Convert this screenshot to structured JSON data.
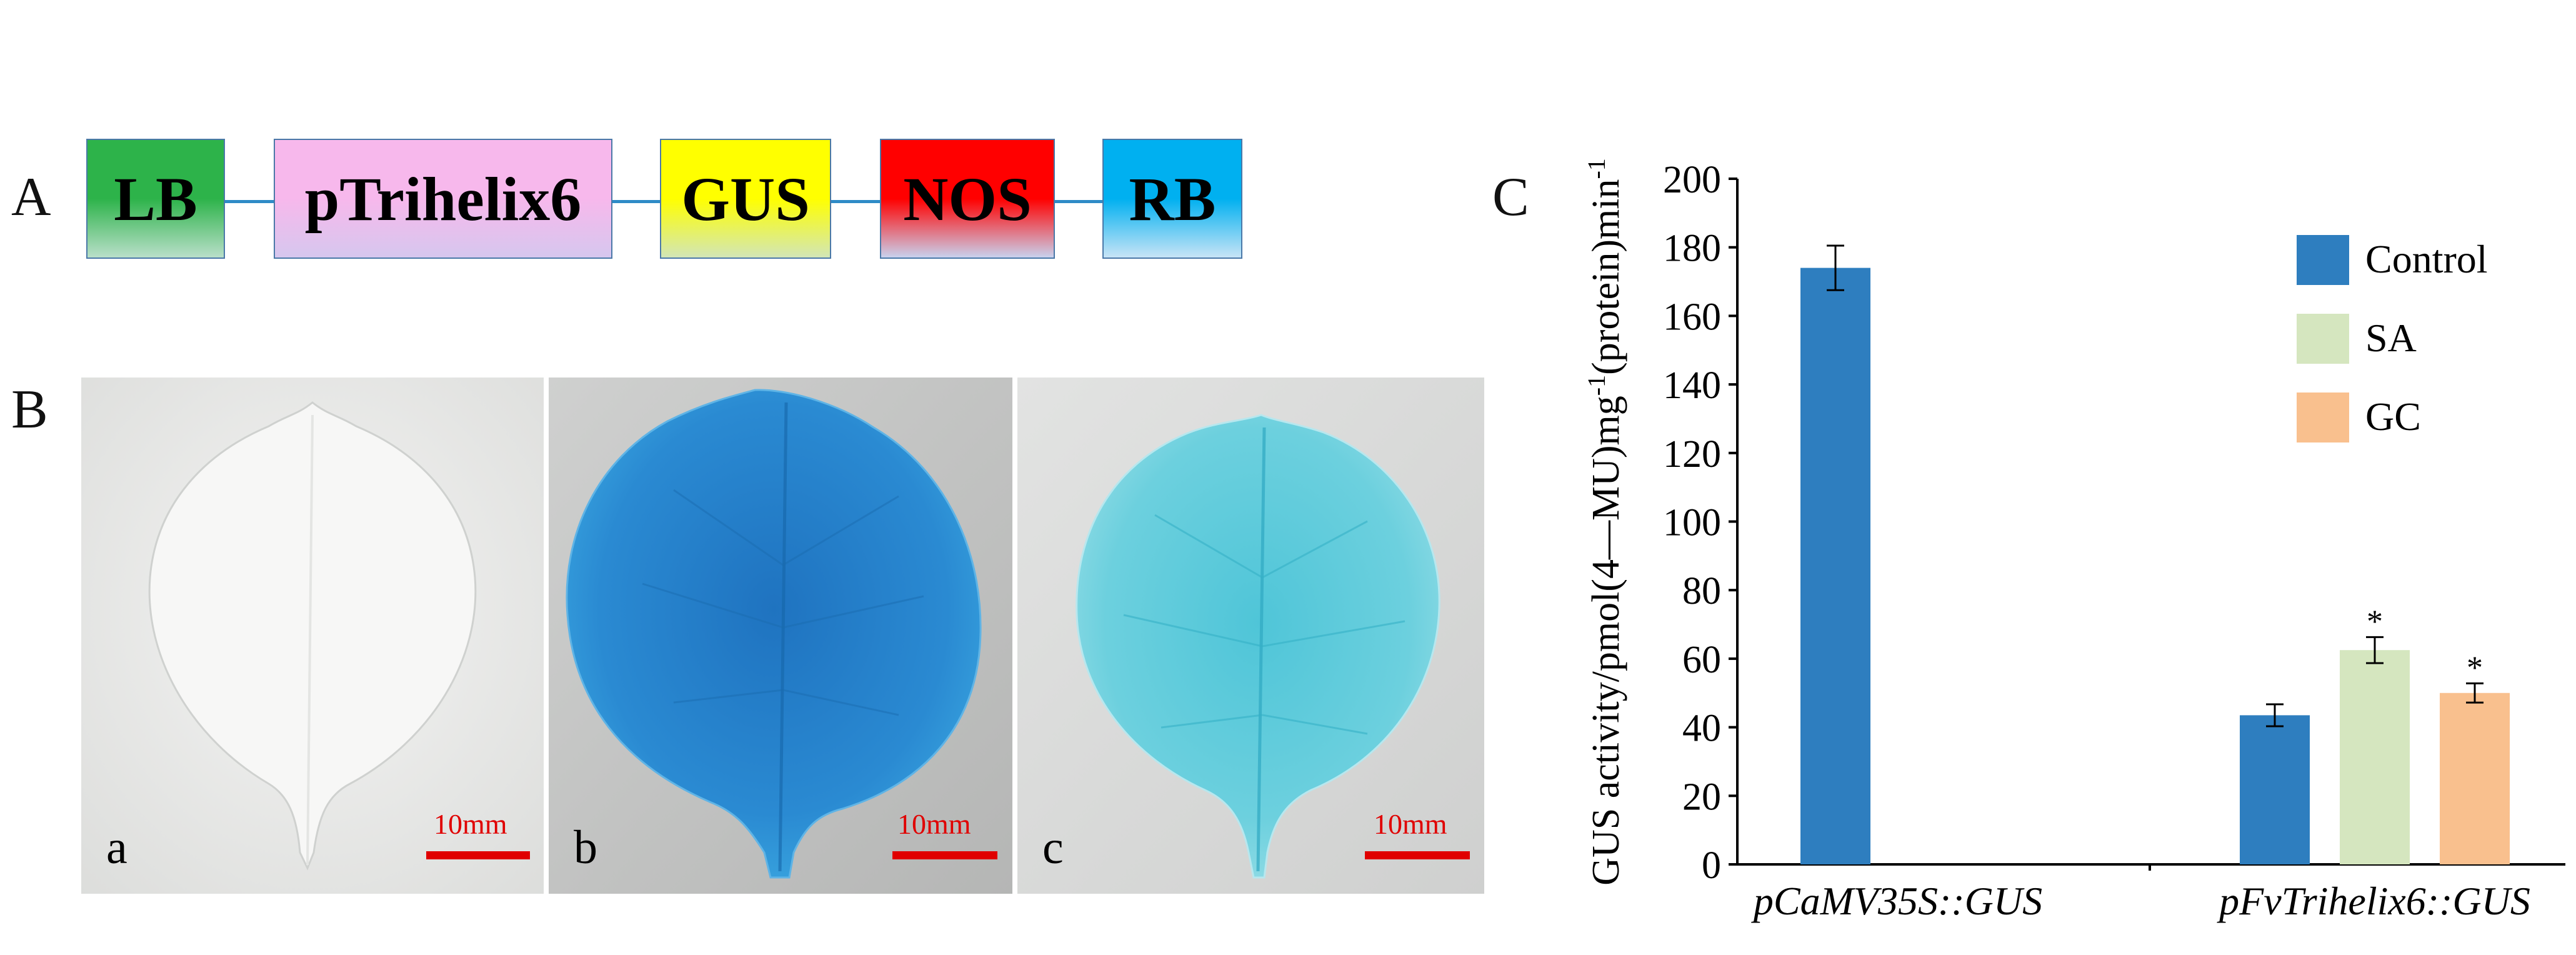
{
  "panel_labels": {
    "a": "A",
    "b": "B",
    "c": "C"
  },
  "construct": {
    "elements": [
      {
        "label": "LB",
        "color_top": "#2db34a",
        "color_bottom": "#b9dfc9"
      },
      {
        "label": "pTrihelix6",
        "color_top": "#f7b8ec",
        "color_bottom": "#d6c7ee"
      },
      {
        "label": "GUS",
        "color_top": "#ffff00",
        "color_bottom": "#d2e6b7"
      },
      {
        "label": "NOS",
        "color_top": "#ff0000",
        "color_bottom": "#c9d2ee"
      },
      {
        "label": "RB",
        "color_top": "#00b0f0",
        "color_bottom": "#c8e4f6"
      }
    ],
    "connector_color": "#2e8bc7"
  },
  "photos": [
    {
      "letter": "a",
      "scale": "10mm",
      "staining": "none"
    },
    {
      "letter": "b",
      "scale": "10mm",
      "staining": "strong-blue"
    },
    {
      "letter": "c",
      "scale": "10mm",
      "staining": "light-blue"
    }
  ],
  "chart_data": {
    "type": "bar",
    "ylabel": "GUS activity/pmol(4—MU)mg-1(protein)min-1",
    "ylabel_parts": {
      "main": "GUS activity/pmol(4—MU)mg",
      "sup1": "-1",
      "mid": "(protein)min",
      "sup2": "-1"
    },
    "ylim": [
      0,
      200
    ],
    "yticks": [
      0,
      20,
      40,
      60,
      80,
      100,
      120,
      140,
      160,
      180,
      200
    ],
    "categories": [
      "pCaMV35S::GUS",
      "pFvTrihelix6::GUS"
    ],
    "series": [
      {
        "name": "Control",
        "color": "#2e7ebf",
        "values": [
          174,
          43.5
        ],
        "errors": [
          6.5,
          3.2
        ],
        "significance": [
          "",
          ""
        ]
      },
      {
        "name": "SA",
        "color": "#d5e6bf",
        "values": [
          null,
          62.5
        ],
        "errors": [
          null,
          3.8
        ],
        "significance": [
          "",
          "*"
        ]
      },
      {
        "name": "GC",
        "color": "#f9c08e",
        "values": [
          null,
          50
        ],
        "errors": [
          null,
          2.8
        ],
        "significance": [
          "",
          "*"
        ]
      }
    ],
    "legend_position": "top-right",
    "grid": false
  }
}
